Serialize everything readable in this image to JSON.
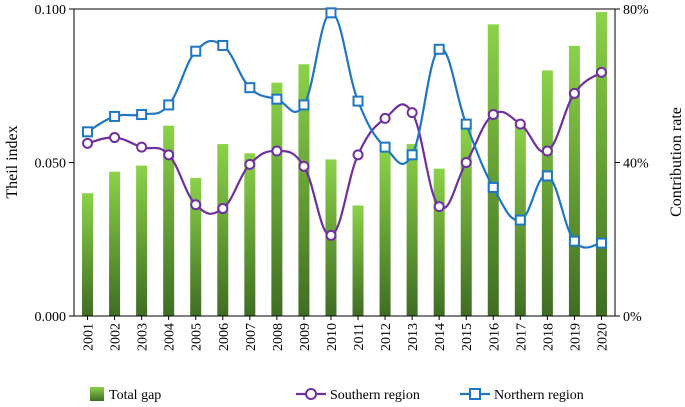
{
  "chart_data": {
    "type": "bar+line",
    "title": "",
    "categories": [
      "2001",
      "2002",
      "2003",
      "2004",
      "2005",
      "2006",
      "2007",
      "2008",
      "2009",
      "2010",
      "2011",
      "2012",
      "2013",
      "2014",
      "2015",
      "2016",
      "2017",
      "2018",
      "2019",
      "2020"
    ],
    "bar_series": {
      "name": "Total gap",
      "axis": "left",
      "values": [
        0.04,
        0.047,
        0.049,
        0.062,
        0.045,
        0.056,
        0.053,
        0.076,
        0.082,
        0.051,
        0.036,
        0.054,
        0.056,
        0.048,
        0.062,
        0.095,
        0.063,
        0.08,
        0.088,
        0.099
      ]
    },
    "line_series": [
      {
        "name": "Southern region",
        "axis": "right",
        "marker": "circle",
        "color": "#7030A0",
        "values": [
          45,
          46.5,
          44,
          42,
          29,
          28,
          39.5,
          43,
          39,
          21,
          42,
          51.5,
          53,
          28.5,
          40,
          52.5,
          50,
          43,
          58,
          63.5
        ]
      },
      {
        "name": "Northern region",
        "axis": "right",
        "marker": "square",
        "color": "#1F77C4",
        "values": [
          48,
          52,
          52.5,
          55,
          69,
          70.5,
          59.5,
          56.5,
          55,
          79,
          56,
          44,
          42,
          69.5,
          50,
          33.5,
          25,
          36.5,
          19.5,
          19
        ]
      }
    ],
    "left_axis": {
      "label": "Theil index",
      "ylim": [
        0,
        0.1
      ],
      "ticks": [
        0,
        0.05,
        0.1
      ],
      "tick_labels": [
        "0.000",
        "0.050",
        "0.100"
      ]
    },
    "right_axis": {
      "label": "Contribution rate",
      "ylim": [
        0,
        80
      ],
      "ticks": [
        0,
        40,
        80
      ],
      "tick_labels": [
        "0%",
        "40%",
        "80%"
      ]
    },
    "xlabel": "",
    "legend": {
      "placement": "bottom",
      "entries": [
        "Total gap",
        "Southern region",
        "Northern region"
      ]
    },
    "colors": {
      "bar_top": "#8CD249",
      "bar_bottom": "#3F6D23",
      "southern": "#7030A0",
      "northern": "#1F77C4"
    },
    "grid": false
  }
}
